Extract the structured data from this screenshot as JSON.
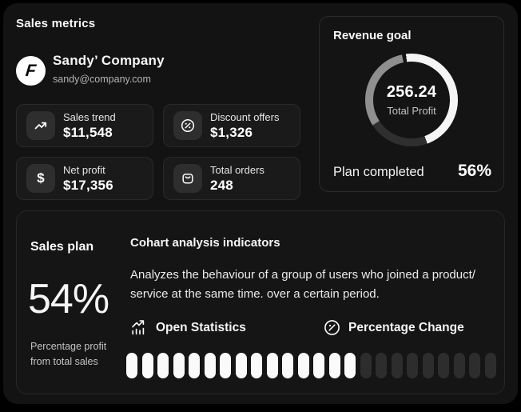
{
  "page": {
    "title": "Sales metrics"
  },
  "company": {
    "name": "Sandy’ Company",
    "email": "sandy@company.com",
    "logo_icon": "flash-f-logo-icon",
    "logo_letter": "F"
  },
  "stats": [
    {
      "label": "Sales trend",
      "value": "$11,548",
      "icon": "trend-up-icon"
    },
    {
      "label": "Discount offers",
      "value": "$1,326",
      "icon": "discount-percent-icon"
    },
    {
      "label": "Net profit",
      "value": "$17,356",
      "icon": "dollar-icon"
    },
    {
      "label": "Total orders",
      "value": "248",
      "icon": "orders-bag-icon"
    }
  ],
  "revenue_goal": {
    "title": "Revenue goal",
    "center_value": "256.24",
    "center_label": "Total Profit",
    "plan_label": "Plan completed",
    "plan_value": "56%",
    "ring": {
      "gap_color": "#141414",
      "segments": [
        {
          "name": "completed",
          "color": "#f5f5f5",
          "from_deg": 0,
          "to_deg": 160
        },
        {
          "name": "remaining-dark",
          "color": "#2f2f2f",
          "from_deg": 160,
          "to_deg": 237
        },
        {
          "name": "secondary-gray",
          "color": "#8f8f8f",
          "from_deg": 237,
          "to_deg": 348
        },
        {
          "name": "gap",
          "color": "#141414",
          "from_deg": 348,
          "to_deg": 353
        },
        {
          "name": "completed-lead",
          "color": "#f5f5f5",
          "from_deg": 353,
          "to_deg": 360
        }
      ]
    }
  },
  "sales_plan": {
    "title": "Sales plan",
    "percent": "54%",
    "caption_lines": [
      "Percentage profit",
      "from total sales"
    ]
  },
  "cohort": {
    "title": "Cohart analysis indicators",
    "description_lines": [
      "Analyzes the behaviour of a group of users who joined a product/",
      "service at the same time. over a certain period."
    ],
    "actions": [
      {
        "label": "Open Statistics",
        "icon": "stats-chart-icon"
      },
      {
        "label": "Percentage Change",
        "icon": "percent-circle-icon"
      }
    ],
    "progress_pills": {
      "total": 24,
      "filled": 15,
      "filled_color": "#fafafa",
      "empty_color": "#2d2d2d"
    }
  },
  "colors": {
    "outer_bg": "#000000",
    "panel_bg": "#131313",
    "card_bg": "#1a1a1a",
    "accent_white": "#fafafa"
  }
}
